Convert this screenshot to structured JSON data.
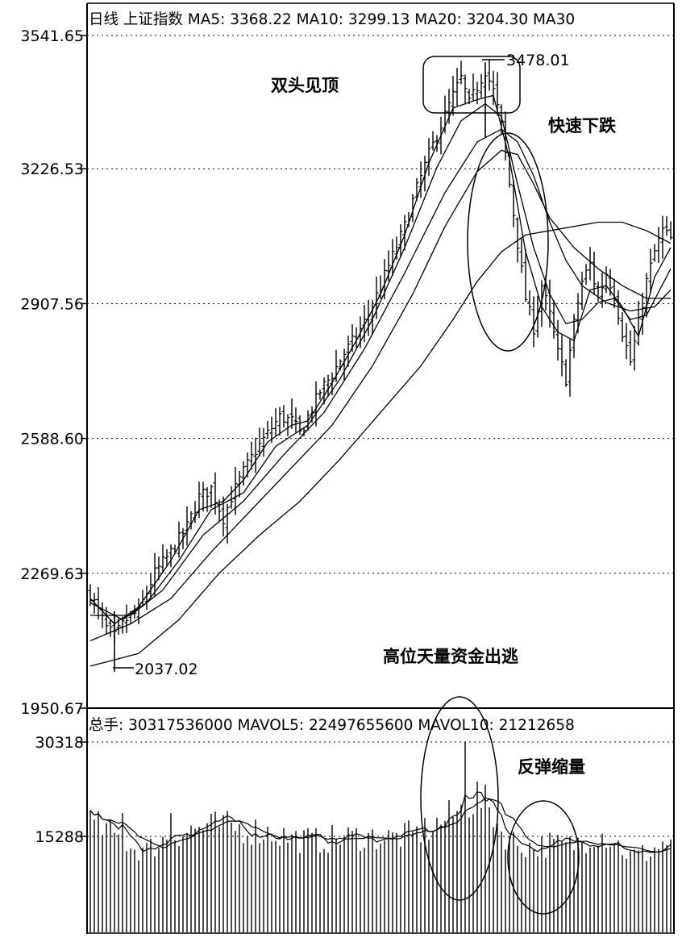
{
  "chart_data": [
    {
      "type": "candlestick",
      "panel": "price",
      "header": "日线  上证指数 MA5: 3368.22 MA10: 3299.13 MA20: 3204.30 MA30",
      "y_ticks": [
        "3541.65",
        "3226.53",
        "2907.56",
        "2588.60",
        "2269.63",
        "1950.67"
      ],
      "ylim": [
        1950.67,
        3541.65
      ],
      "high_label": "3478.01",
      "low_label": "2037.02",
      "high_value": 3478.01,
      "low_value": 2037.02,
      "annotations": [
        "双头见顶",
        "快速下跌",
        "高位天量资金出逃"
      ],
      "close_path": [
        [
          0,
          2220
        ],
        [
          4,
          2140
        ],
        [
          6,
          2120
        ],
        [
          9,
          2160
        ],
        [
          12,
          2180
        ],
        [
          16,
          2270
        ],
        [
          20,
          2320
        ],
        [
          24,
          2380
        ],
        [
          27,
          2450
        ],
        [
          30,
          2470
        ],
        [
          33,
          2400
        ],
        [
          35,
          2450
        ],
        [
          38,
          2510
        ],
        [
          41,
          2560
        ],
        [
          44,
          2600
        ],
        [
          47,
          2640
        ],
        [
          50,
          2630
        ],
        [
          52,
          2600
        ],
        [
          54,
          2640
        ],
        [
          57,
          2700
        ],
        [
          60,
          2740
        ],
        [
          63,
          2790
        ],
        [
          66,
          2830
        ],
        [
          69,
          2880
        ],
        [
          72,
          2950
        ],
        [
          75,
          3020
        ],
        [
          78,
          3090
        ],
        [
          81,
          3180
        ],
        [
          84,
          3260
        ],
        [
          87,
          3330
        ],
        [
          90,
          3400
        ],
        [
          92,
          3440
        ],
        [
          94,
          3380
        ],
        [
          96,
          3420
        ],
        [
          98,
          3460
        ],
        [
          100,
          3410
        ],
        [
          102,
          3330
        ],
        [
          104,
          3190
        ],
        [
          106,
          3050
        ],
        [
          108,
          2920
        ],
        [
          110,
          2850
        ],
        [
          112,
          2950
        ],
        [
          114,
          2880
        ],
        [
          116,
          2790
        ],
        [
          118,
          2730
        ],
        [
          120,
          2860
        ],
        [
          122,
          2960
        ],
        [
          124,
          3000
        ],
        [
          126,
          2920
        ],
        [
          128,
          2980
        ],
        [
          130,
          2930
        ],
        [
          132,
          2840
        ],
        [
          134,
          2770
        ],
        [
          136,
          2860
        ],
        [
          138,
          2960
        ],
        [
          140,
          3030
        ],
        [
          142,
          3080
        ],
        [
          144,
          3060
        ]
      ],
      "ma_paths": [
        [
          [
            0,
            2210
          ],
          [
            6,
            2150
          ],
          [
            12,
            2190
          ],
          [
            20,
            2300
          ],
          [
            27,
            2420
          ],
          [
            33,
            2440
          ],
          [
            38,
            2490
          ],
          [
            44,
            2580
          ],
          [
            50,
            2620
          ],
          [
            54,
            2630
          ],
          [
            60,
            2720
          ],
          [
            66,
            2820
          ],
          [
            72,
            2930
          ],
          [
            78,
            3070
          ],
          [
            84,
            3240
          ],
          [
            90,
            3370
          ],
          [
            96,
            3390
          ],
          [
            100,
            3400
          ],
          [
            104,
            3250
          ],
          [
            108,
            3030
          ],
          [
            112,
            2900
          ],
          [
            116,
            2840
          ],
          [
            120,
            2820
          ],
          [
            124,
            2940
          ],
          [
            128,
            2950
          ],
          [
            132,
            2900
          ],
          [
            136,
            2830
          ],
          [
            140,
            2970
          ],
          [
            144,
            3040
          ]
        ],
        [
          [
            0,
            2200
          ],
          [
            8,
            2160
          ],
          [
            14,
            2200
          ],
          [
            22,
            2300
          ],
          [
            30,
            2420
          ],
          [
            38,
            2460
          ],
          [
            46,
            2570
          ],
          [
            54,
            2620
          ],
          [
            62,
            2730
          ],
          [
            70,
            2870
          ],
          [
            78,
            3040
          ],
          [
            86,
            3230
          ],
          [
            92,
            3340
          ],
          [
            98,
            3380
          ],
          [
            102,
            3350
          ],
          [
            106,
            3190
          ],
          [
            110,
            3040
          ],
          [
            114,
            2930
          ],
          [
            118,
            2860
          ],
          [
            122,
            2870
          ],
          [
            126,
            2910
          ],
          [
            130,
            2920
          ],
          [
            134,
            2870
          ],
          [
            138,
            2880
          ],
          [
            144,
            2990
          ]
        ],
        [
          [
            0,
            2170
          ],
          [
            10,
            2170
          ],
          [
            18,
            2230
          ],
          [
            28,
            2360
          ],
          [
            38,
            2440
          ],
          [
            48,
            2550
          ],
          [
            58,
            2650
          ],
          [
            68,
            2800
          ],
          [
            78,
            2980
          ],
          [
            88,
            3170
          ],
          [
            96,
            3290
          ],
          [
            102,
            3320
          ],
          [
            106,
            3290
          ],
          [
            110,
            3210
          ],
          [
            114,
            3100
          ],
          [
            118,
            3010
          ],
          [
            122,
            2950
          ],
          [
            128,
            2910
          ],
          [
            134,
            2890
          ],
          [
            140,
            2900
          ],
          [
            144,
            2940
          ]
        ],
        [
          [
            0,
            2110
          ],
          [
            10,
            2150
          ],
          [
            20,
            2210
          ],
          [
            30,
            2320
          ],
          [
            40,
            2420
          ],
          [
            50,
            2520
          ],
          [
            60,
            2620
          ],
          [
            70,
            2760
          ],
          [
            80,
            2930
          ],
          [
            88,
            3090
          ],
          [
            96,
            3220
          ],
          [
            102,
            3270
          ],
          [
            106,
            3260
          ],
          [
            110,
            3190
          ],
          [
            114,
            3110
          ],
          [
            120,
            3040
          ],
          [
            126,
            2990
          ],
          [
            132,
            2950
          ],
          [
            138,
            2920
          ],
          [
            144,
            2920
          ]
        ],
        [
          [
            0,
            2050
          ],
          [
            12,
            2080
          ],
          [
            22,
            2160
          ],
          [
            32,
            2270
          ],
          [
            42,
            2360
          ],
          [
            52,
            2440
          ],
          [
            62,
            2540
          ],
          [
            72,
            2650
          ],
          [
            82,
            2760
          ],
          [
            90,
            2870
          ],
          [
            96,
            2960
          ],
          [
            102,
            3030
          ],
          [
            108,
            3070
          ],
          [
            114,
            3080
          ],
          [
            120,
            3090
          ],
          [
            126,
            3100
          ],
          [
            132,
            3100
          ],
          [
            138,
            3080
          ],
          [
            144,
            3050
          ]
        ]
      ]
    },
    {
      "type": "bar",
      "panel": "volume",
      "header": "总手: 30317536000 MAVOL5: 22497655600 MAVOL10: 21212658",
      "y_ticks": [
        "30318",
        "15288"
      ],
      "ylim": [
        0,
        30318
      ],
      "annotations": [
        "反弹缩量"
      ],
      "volume_levels": [
        [
          0,
          18000
        ],
        [
          6,
          16000
        ],
        [
          10,
          14000
        ],
        [
          14,
          13500
        ],
        [
          20,
          16000
        ],
        [
          26,
          17000
        ],
        [
          32,
          17500
        ],
        [
          38,
          17000
        ],
        [
          44,
          16500
        ],
        [
          50,
          15500
        ],
        [
          56,
          15000
        ],
        [
          62,
          15500
        ],
        [
          68,
          15800
        ],
        [
          74,
          15500
        ],
        [
          80,
          16000
        ],
        [
          84,
          17000
        ],
        [
          88,
          18500
        ],
        [
          92,
          20000
        ],
        [
          96,
          22000
        ],
        [
          98,
          21000
        ],
        [
          100,
          19500
        ],
        [
          102,
          16500
        ],
        [
          106,
          14500
        ],
        [
          110,
          14000
        ],
        [
          114,
          14500
        ],
        [
          118,
          14000
        ],
        [
          122,
          15000
        ],
        [
          126,
          16500
        ],
        [
          130,
          15000
        ],
        [
          134,
          12500
        ],
        [
          138,
          13000
        ],
        [
          142,
          14500
        ],
        [
          144,
          15000
        ]
      ],
      "spikes": [
        [
          93,
          30318
        ],
        [
          96,
          24000
        ],
        [
          20,
          19000
        ],
        [
          8,
          19000
        ]
      ]
    }
  ]
}
